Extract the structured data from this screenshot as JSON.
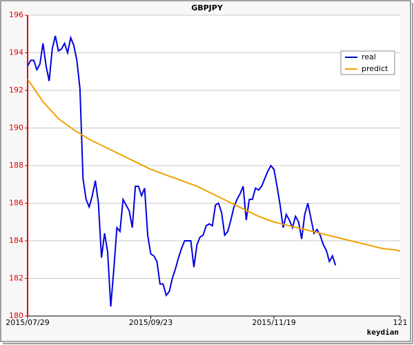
{
  "chart_data": {
    "type": "line",
    "title": "GBPJPY",
    "x_label": "keydian",
    "xlim": [
      0,
      121
    ],
    "xticks": [
      {
        "value": 0,
        "label": "2015/07/29"
      },
      {
        "value": 40,
        "label": "2015/09/23"
      },
      {
        "value": 80,
        "label": "2015/11/19"
      },
      121
    ],
    "ylim": [
      180,
      196
    ],
    "yticks": [
      180,
      182,
      184,
      186,
      188,
      190,
      192,
      194,
      196
    ],
    "grid": true,
    "legend": "upper right",
    "series": [
      {
        "name": "real",
        "color": "#0000dd",
        "x": [
          0,
          1,
          2,
          3,
          4,
          5,
          6,
          7,
          8,
          9,
          10,
          11,
          12,
          13,
          14,
          15,
          16,
          17,
          18,
          19,
          20,
          21,
          22,
          23,
          24,
          25,
          26,
          27,
          28,
          29,
          30,
          31,
          32,
          33,
          34,
          35,
          36,
          37,
          38,
          39,
          40,
          41,
          42,
          43,
          44,
          45,
          46,
          47,
          48,
          49,
          50,
          51,
          52,
          53,
          54,
          55,
          56,
          57,
          58,
          59,
          60,
          61,
          62,
          63,
          64,
          65,
          66,
          67,
          68,
          69,
          70,
          71,
          72,
          73,
          74,
          75,
          76,
          77,
          78,
          79,
          80,
          81,
          82,
          83,
          84,
          85,
          86,
          87,
          88,
          89,
          90,
          91,
          92,
          93,
          94,
          95,
          96,
          97,
          98,
          99,
          100
        ],
        "values": [
          193.3,
          193.6,
          193.6,
          193.1,
          193.4,
          194.5,
          193.3,
          192.5,
          194.2,
          194.9,
          194.1,
          194.2,
          194.5,
          194.0,
          194.8,
          194.4,
          193.6,
          192.1,
          187.3,
          186.2,
          185.8,
          186.4,
          187.2,
          186.0,
          183.1,
          184.4,
          183.4,
          180.5,
          182.5,
          184.7,
          184.5,
          186.2,
          185.9,
          185.6,
          184.7,
          186.9,
          186.9,
          186.4,
          186.8,
          184.3,
          183.3,
          183.2,
          182.9,
          181.7,
          181.7,
          181.1,
          181.3,
          182.0,
          182.5,
          183.1,
          183.6,
          184.0,
          184.0,
          184.0,
          182.6,
          183.8,
          184.2,
          184.3,
          184.8,
          184.9,
          184.8,
          185.9,
          186.0,
          185.5,
          184.3,
          184.5,
          185.1,
          185.8,
          186.2,
          186.5,
          186.9,
          185.1,
          186.2,
          186.2,
          186.8,
          186.7,
          186.9,
          187.3,
          187.7,
          188.0,
          187.8,
          186.9,
          185.9,
          184.7,
          185.4,
          185.1,
          184.7,
          185.3,
          185.0,
          184.1,
          185.4,
          186.0,
          185.2,
          184.4,
          184.6,
          184.3,
          183.8,
          183.5,
          182.9,
          183.2,
          182.7
        ]
      },
      {
        "name": "predict",
        "color": "#f0a000",
        "x": [
          0,
          5,
          10,
          15,
          20,
          25,
          30,
          35,
          40,
          45,
          50,
          55,
          60,
          65,
          70,
          75,
          80,
          85,
          90,
          95,
          100,
          105,
          110,
          115,
          120,
          121
        ],
        "values": [
          192.6,
          191.4,
          190.5,
          189.9,
          189.4,
          189.0,
          188.6,
          188.2,
          187.8,
          187.5,
          187.2,
          186.9,
          186.5,
          186.1,
          185.7,
          185.3,
          185.0,
          184.8,
          184.6,
          184.4,
          184.2,
          184.0,
          183.8,
          183.6,
          183.5,
          183.45
        ]
      }
    ]
  }
}
